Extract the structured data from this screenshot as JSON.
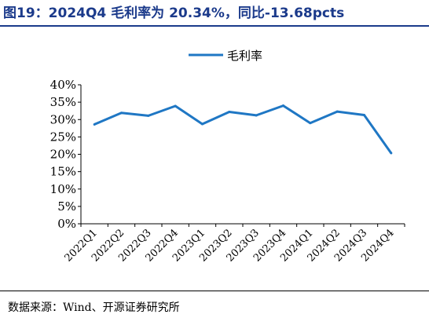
{
  "header": {
    "title": "图19：2024Q4 毛利率为 20.34%，同比-13.68pcts"
  },
  "footer": {
    "source": "数据来源：Wind、开源证券研究所"
  },
  "colors": {
    "title": "#1b3a8b",
    "series_line": "#1f77c4",
    "axis": "#000000"
  },
  "chart_data": {
    "type": "line",
    "categories": [
      "2022Q1",
      "2022Q2",
      "2022Q3",
      "2022Q4",
      "2023Q1",
      "2023Q2",
      "2023Q3",
      "2023Q4",
      "2024Q1",
      "2024Q2",
      "2024Q3",
      "2024Q4"
    ],
    "series": [
      {
        "name": "毛利率",
        "values": [
          28.6,
          31.9,
          31.1,
          33.9,
          28.7,
          32.2,
          31.2,
          34.0,
          29.0,
          32.3,
          31.3,
          20.34
        ]
      }
    ],
    "y_ticks": [
      "0%",
      "5%",
      "10%",
      "15%",
      "20%",
      "25%",
      "30%",
      "35%",
      "40%"
    ],
    "ylim": [
      0,
      40
    ],
    "y_step": 5,
    "grid": false,
    "legend_position": "top-center"
  }
}
